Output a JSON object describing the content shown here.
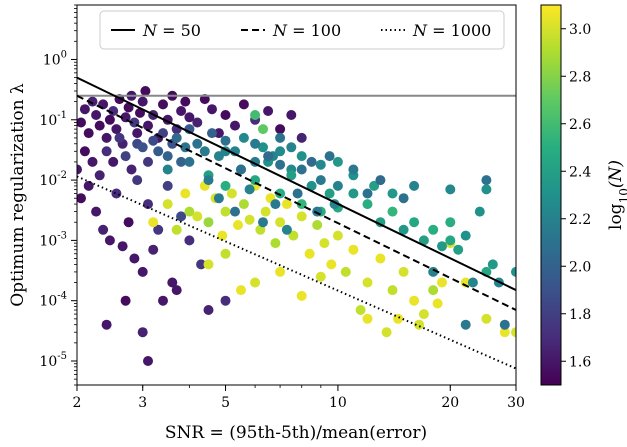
{
  "chart_data": {
    "type": "scatter",
    "xlabel": "SNR = (95th-5th)/mean(error)",
    "ylabel": "Optimum regularization λ",
    "xscale": "log",
    "yscale": "log",
    "xlim": [
      2,
      30
    ],
    "ylim": [
      4e-06,
      8
    ],
    "x_ticks": [
      {
        "value": 2,
        "label": "2"
      },
      {
        "value": 3,
        "label": "3"
      },
      {
        "value": 5,
        "label": "5"
      },
      {
        "value": 10,
        "label": "10"
      },
      {
        "value": 20,
        "label": "20"
      },
      {
        "value": 30,
        "label": "30"
      }
    ],
    "y_ticks": [
      {
        "value": 1e-05,
        "base": "10",
        "exp": "-5"
      },
      {
        "value": 0.0001,
        "base": "10",
        "exp": "-4"
      },
      {
        "value": 0.001,
        "base": "10",
        "exp": "-3"
      },
      {
        "value": 0.01,
        "base": "10",
        "exp": "-2"
      },
      {
        "value": 0.1,
        "base": "10",
        "exp": "-1"
      },
      {
        "value": 1,
        "base": "10",
        "exp": "0"
      }
    ],
    "hline": {
      "y": 0.25,
      "color": "#888888"
    },
    "lines": [
      {
        "name": "N = 50",
        "style": "solid",
        "points": [
          [
            2,
            0.5
          ],
          [
            30,
            0.00015
          ]
        ]
      },
      {
        "name": "N = 100",
        "style": "dashed",
        "points": [
          [
            2,
            0.25
          ],
          [
            30,
            7e-05
          ]
        ]
      },
      {
        "name": "N = 1000",
        "style": "dotted",
        "points": [
          [
            2,
            0.0115
          ],
          [
            30,
            7.5e-06
          ]
        ]
      }
    ],
    "legend": {
      "placement": "top",
      "entries": [
        {
          "label_main": "N",
          "label_eq": " = 50",
          "style": "solid"
        },
        {
          "label_main": "N",
          "label_eq": " = 100",
          "style": "dashed"
        },
        {
          "label_main": "N",
          "label_eq": " = 1000",
          "style": "dotted"
        }
      ]
    },
    "colorbar": {
      "label": "log10(N)",
      "label_base": "log",
      "label_sub": "10",
      "label_arg": "(N)",
      "min": 1.5,
      "max": 3.1,
      "ticks": [
        "1.6",
        "1.8",
        "2.0",
        "2.2",
        "2.4",
        "2.6",
        "2.8",
        "3.0"
      ],
      "colormap": "viridis"
    },
    "points": [
      [
        2.05,
        0.09,
        1.55
      ],
      [
        2.1,
        0.15,
        1.6
      ],
      [
        2.15,
        0.06,
        1.55
      ],
      [
        2.2,
        0.2,
        1.65
      ],
      [
        2.25,
        0.12,
        1.6
      ],
      [
        2.3,
        0.08,
        1.55
      ],
      [
        2.35,
        0.18,
        1.6
      ],
      [
        2.4,
        0.05,
        1.6
      ],
      [
        2.45,
        0.1,
        1.55
      ],
      [
        2.5,
        0.14,
        1.7
      ],
      [
        2.55,
        0.07,
        1.6
      ],
      [
        2.6,
        0.22,
        1.55
      ],
      [
        2.65,
        0.04,
        1.65
      ],
      [
        2.7,
        0.11,
        1.6
      ],
      [
        2.75,
        0.16,
        1.55
      ],
      [
        2.8,
        0.25,
        1.6
      ],
      [
        2.85,
        0.09,
        1.75
      ],
      [
        2.9,
        0.06,
        1.6
      ],
      [
        2.95,
        0.13,
        1.55
      ],
      [
        3.0,
        0.2,
        1.6
      ],
      [
        3.05,
        0.3,
        1.55
      ],
      [
        3.1,
        0.08,
        1.6
      ],
      [
        3.2,
        0.12,
        1.65
      ],
      [
        3.3,
        0.05,
        1.6
      ],
      [
        3.4,
        0.18,
        1.55
      ],
      [
        3.5,
        0.1,
        1.6
      ],
      [
        3.6,
        0.25,
        1.55
      ],
      [
        3.7,
        0.07,
        1.7
      ],
      [
        3.8,
        0.14,
        1.6
      ],
      [
        3.9,
        0.2,
        1.55
      ],
      [
        4.0,
        0.11,
        1.6
      ],
      [
        4.2,
        0.09,
        1.65
      ],
      [
        4.4,
        0.22,
        1.55
      ],
      [
        4.6,
        0.15,
        1.6
      ],
      [
        4.8,
        0.06,
        1.6
      ],
      [
        5.0,
        0.12,
        1.55
      ],
      [
        5.3,
        0.08,
        1.6
      ],
      [
        5.6,
        0.18,
        1.55
      ],
      [
        6.0,
        0.1,
        1.7
      ],
      [
        6.5,
        0.14,
        1.6
      ],
      [
        7.0,
        0.07,
        1.55
      ],
      [
        7.5,
        0.12,
        1.6
      ],
      [
        8.0,
        0.05,
        1.65
      ],
      [
        2.1,
        0.03,
        1.55
      ],
      [
        2.2,
        0.02,
        1.6
      ],
      [
        2.3,
        0.012,
        1.65
      ],
      [
        2.4,
        0.03,
        1.7
      ],
      [
        2.5,
        0.02,
        1.6
      ],
      [
        2.6,
        0.05,
        1.75
      ],
      [
        2.7,
        0.025,
        1.8
      ],
      [
        2.8,
        0.015,
        1.65
      ],
      [
        2.9,
        0.04,
        1.85
      ],
      [
        3.0,
        0.035,
        1.9
      ],
      [
        3.1,
        0.02,
        1.75
      ],
      [
        3.2,
        0.045,
        1.85
      ],
      [
        3.3,
        0.03,
        1.95
      ],
      [
        3.4,
        0.06,
        1.8
      ],
      [
        3.5,
        0.025,
        2.0
      ],
      [
        3.6,
        0.04,
        1.9
      ],
      [
        3.7,
        0.05,
        2.05
      ],
      [
        3.8,
        0.02,
        2.0
      ],
      [
        3.9,
        0.035,
        2.1
      ],
      [
        4.0,
        0.07,
        1.95
      ],
      [
        4.2,
        0.04,
        2.1
      ],
      [
        4.4,
        0.03,
        2.15
      ],
      [
        4.6,
        0.06,
        2.0
      ],
      [
        4.8,
        0.025,
        2.2
      ],
      [
        5.0,
        0.045,
        2.1
      ],
      [
        5.3,
        0.03,
        2.2
      ],
      [
        5.6,
        0.05,
        2.25
      ],
      [
        6.0,
        0.02,
        2.15
      ],
      [
        6.3,
        0.035,
        2.3
      ],
      [
        6.7,
        0.025,
        2.2
      ],
      [
        7.0,
        0.05,
        2.1
      ],
      [
        7.5,
        0.015,
        2.25
      ],
      [
        2.0,
        0.015,
        1.6
      ],
      [
        2.05,
        0.005,
        1.55
      ],
      [
        2.15,
        0.008,
        1.6
      ],
      [
        2.25,
        0.003,
        1.6
      ],
      [
        2.35,
        0.0015,
        1.65
      ],
      [
        2.45,
        0.001,
        1.6
      ],
      [
        2.55,
        0.006,
        1.7
      ],
      [
        2.65,
        0.0008,
        1.6
      ],
      [
        2.75,
        0.002,
        1.55
      ],
      [
        2.85,
        0.0005,
        1.6
      ],
      [
        2.9,
        0.01,
        1.75
      ],
      [
        3.0,
        0.0003,
        1.6
      ],
      [
        3.1,
        0.004,
        1.7
      ],
      [
        3.2,
        0.0007,
        1.65
      ],
      [
        3.4,
        0.0001,
        1.6
      ],
      [
        3.6,
        0.0002,
        1.6
      ],
      [
        2.4,
        4e-05,
        1.6
      ],
      [
        3.0,
        3e-05,
        1.65
      ],
      [
        3.1,
        1e-05,
        1.6
      ],
      [
        2.7,
        0.0001,
        1.55
      ],
      [
        3.3,
        0.0015,
        1.75
      ],
      [
        3.5,
        0.008,
        1.8
      ],
      [
        3.8,
        0.0025,
        1.85
      ],
      [
        4.0,
        0.001,
        1.7
      ],
      [
        4.3,
        0.0004,
        1.75
      ],
      [
        4.5,
        7e-05,
        1.65
      ],
      [
        5.0,
        0.0001,
        1.7
      ],
      [
        3.7,
        0.00015,
        1.6
      ],
      [
        3.2,
        0.002,
        3.05
      ],
      [
        3.5,
        0.004,
        3.0
      ],
      [
        3.7,
        0.0015,
        2.95
      ],
      [
        3.9,
        0.006,
        3.05
      ],
      [
        4.0,
        0.003,
        2.9
      ],
      [
        4.2,
        0.0025,
        3.0
      ],
      [
        4.4,
        0.008,
        3.05
      ],
      [
        4.5,
        0.002,
        2.85
      ],
      [
        4.7,
        0.005,
        3.0
      ],
      [
        4.9,
        0.0012,
        3.05
      ],
      [
        5.0,
        0.003,
        2.95
      ],
      [
        5.2,
        0.006,
        3.0
      ],
      [
        5.4,
        0.0018,
        3.05
      ],
      [
        5.6,
        0.004,
        2.9
      ],
      [
        5.8,
        0.0022,
        3.0
      ],
      [
        6.0,
        0.008,
        3.05
      ],
      [
        6.2,
        0.0015,
        2.95
      ],
      [
        6.4,
        0.003,
        3.0
      ],
      [
        6.6,
        0.005,
        3.05
      ],
      [
        6.8,
        0.0009,
        2.9
      ],
      [
        7.0,
        0.002,
        3.0
      ],
      [
        7.3,
        0.004,
        3.05
      ],
      [
        7.6,
        0.0012,
        2.95
      ],
      [
        8.0,
        0.0025,
        3.0
      ],
      [
        8.4,
        0.0006,
        3.05
      ],
      [
        8.8,
        0.0018,
        2.9
      ],
      [
        9.2,
        0.0009,
        3.0
      ],
      [
        9.6,
        0.0004,
        3.05
      ],
      [
        10.0,
        0.0012,
        3.0
      ],
      [
        10.5,
        0.0003,
        2.95
      ],
      [
        11.0,
        0.0007,
        3.05
      ],
      [
        12.0,
        0.0002,
        3.0
      ],
      [
        13.0,
        0.0005,
        3.05
      ],
      [
        14.0,
        0.00015,
        2.95
      ],
      [
        15.0,
        0.0003,
        3.0
      ],
      [
        16.0,
        0.0001,
        3.05
      ],
      [
        17.0,
        6e-05,
        3.0
      ],
      [
        18.0,
        0.00015,
        2.9
      ],
      [
        19.0,
        0.0002,
        3.05
      ],
      [
        20.0,
        0.0009,
        3.0
      ],
      [
        22.0,
        0.0002,
        3.05
      ],
      [
        25.0,
        5e-05,
        3.0
      ],
      [
        28.0,
        3e-05,
        3.05
      ],
      [
        30.0,
        3e-05,
        3.0
      ],
      [
        7.0,
        0.0003,
        3.05
      ],
      [
        6.0,
        0.0002,
        3.0
      ],
      [
        5.5,
        0.00015,
        3.05
      ],
      [
        5.0,
        0.0006,
        2.95
      ],
      [
        4.5,
        0.0004,
        3.0
      ],
      [
        8.0,
        0.00012,
        3.05
      ],
      [
        9.0,
        0.00025,
        3.0
      ],
      [
        12.0,
        5e-05,
        3.05
      ],
      [
        13.5,
        3e-05,
        3.0
      ],
      [
        11.5,
        7e-05,
        2.95
      ],
      [
        14.5,
        5e-05,
        3.05
      ],
      [
        16.5,
        4e-05,
        3.0
      ],
      [
        18.5,
        9e-05,
        3.05
      ],
      [
        4.5,
        0.012,
        2.4
      ],
      [
        5.0,
        0.008,
        2.5
      ],
      [
        5.5,
        0.015,
        2.35
      ],
      [
        6.0,
        0.01,
        2.45
      ],
      [
        6.5,
        0.02,
        2.3
      ],
      [
        7.0,
        0.006,
        2.5
      ],
      [
        7.5,
        0.012,
        2.4
      ],
      [
        8.0,
        0.004,
        2.55
      ],
      [
        8.5,
        0.008,
        2.3
      ],
      [
        9.0,
        0.003,
        2.5
      ],
      [
        9.5,
        0.006,
        2.4
      ],
      [
        10.0,
        0.0035,
        2.45
      ],
      [
        11.0,
        0.006,
        2.35
      ],
      [
        12.0,
        0.004,
        2.5
      ],
      [
        13.0,
        0.002,
        2.4
      ],
      [
        14.0,
        0.003,
        2.55
      ],
      [
        15.0,
        0.0015,
        2.35
      ],
      [
        16.0,
        0.002,
        2.45
      ],
      [
        17.0,
        0.001,
        2.4
      ],
      [
        18.0,
        0.0015,
        2.5
      ],
      [
        19.0,
        0.0008,
        2.35
      ],
      [
        20.0,
        0.001,
        2.45
      ],
      [
        22.0,
        0.0012,
        2.3
      ],
      [
        24.0,
        0.003,
        2.3
      ],
      [
        25.0,
        0.0003,
        2.45
      ],
      [
        27.0,
        0.0002,
        2.2
      ],
      [
        30.0,
        0.0003,
        2.3
      ],
      [
        23.0,
        0.0002,
        2.2
      ],
      [
        26.0,
        0.0004,
        2.35
      ],
      [
        21.0,
        0.0007,
        2.4
      ],
      [
        14.0,
        0.006,
        2.35
      ],
      [
        12.5,
        0.008,
        2.4
      ],
      [
        11.0,
        0.012,
        2.3
      ],
      [
        10.0,
        0.02,
        2.35
      ],
      [
        9.0,
        0.018,
        2.25
      ],
      [
        8.0,
        0.025,
        2.3
      ],
      [
        7.0,
        0.03,
        2.25
      ],
      [
        25.0,
        0.007,
        2.3
      ],
      [
        20.0,
        0.002,
        2.5
      ],
      [
        3.5,
        0.015,
        2.2
      ],
      [
        4.0,
        0.02,
        2.1
      ],
      [
        4.5,
        0.01,
        2.15
      ],
      [
        5.0,
        0.03,
        2.2
      ],
      [
        5.5,
        0.015,
        2.1
      ],
      [
        6.0,
        0.04,
        2.15
      ],
      [
        6.5,
        0.025,
        2.05
      ],
      [
        7.0,
        0.018,
        2.1
      ],
      [
        7.5,
        0.035,
        2.2
      ],
      [
        8.0,
        0.015,
        2.1
      ],
      [
        8.5,
        0.02,
        2.05
      ],
      [
        9.0,
        0.01,
        2.15
      ],
      [
        9.5,
        0.025,
        2.1
      ],
      [
        10.0,
        0.008,
        2.2
      ],
      [
        11.0,
        0.015,
        2.15
      ],
      [
        12.0,
        0.006,
        2.1
      ],
      [
        13.0,
        0.01,
        2.05
      ],
      [
        15.0,
        0.005,
        2.1
      ],
      [
        4.8,
        0.005,
        2.15
      ],
      [
        5.8,
        0.007,
        2.2
      ],
      [
        6.8,
        0.004,
        2.15
      ],
      [
        7.8,
        0.006,
        2.1
      ],
      [
        8.8,
        0.003,
        2.15
      ],
      [
        9.8,
        0.004,
        2.2
      ],
      [
        5.3,
        0.003,
        2.1
      ],
      [
        6.3,
        0.002,
        2.15
      ],
      [
        7.3,
        0.0015,
        2.2
      ],
      [
        6.0,
        0.12,
        2.6
      ],
      [
        6.3,
        0.07,
        2.7
      ],
      [
        25.0,
        0.01,
        2.1
      ],
      [
        16.0,
        0.008,
        2.2
      ],
      [
        20.0,
        0.007,
        2.25
      ],
      [
        28.0,
        4e-05,
        2.1
      ],
      [
        22.0,
        4e-05,
        2.15
      ],
      [
        18.0,
        0.0003,
        2.2
      ]
    ]
  }
}
